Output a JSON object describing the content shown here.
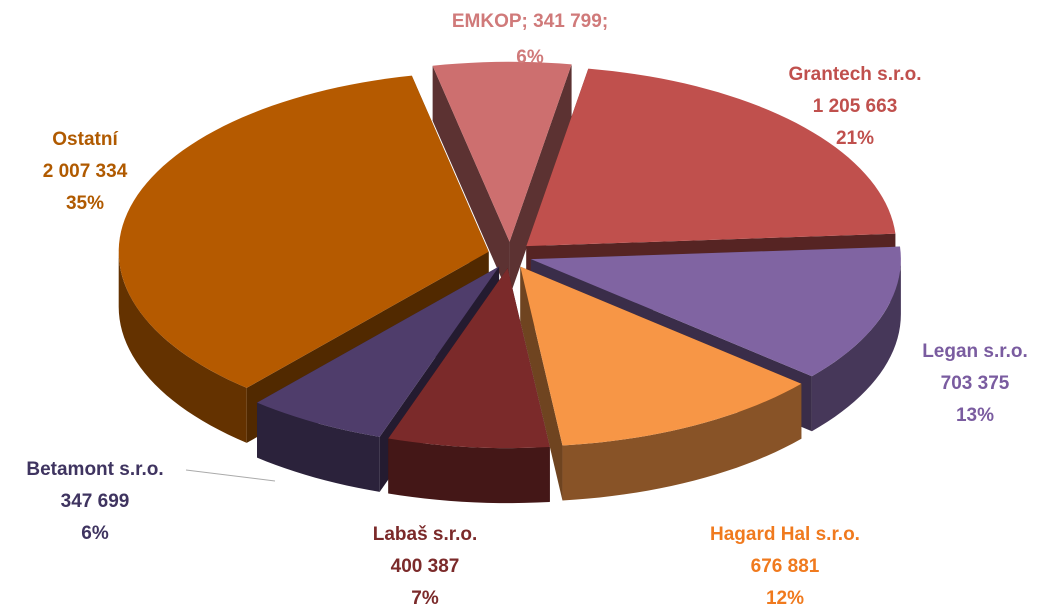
{
  "chart_data": {
    "type": "pie",
    "categories": [
      "EMKOP",
      "Grantech s.r.o.",
      "Legan s.r.o.",
      "Hagard Hal s.r.o.",
      "Labaš s.r.o.",
      "Betamont s.r.o.",
      "Ostatní"
    ],
    "values": [
      341799,
      1205663,
      703375,
      676881,
      400387,
      347699,
      2007334
    ],
    "value_labels": [
      "341 799",
      "1 205 663",
      "703 375",
      "676 881",
      "400 387",
      "347 699",
      "2 007 334"
    ],
    "percent_labels": [
      "6%",
      "21%",
      "13%",
      "12%",
      "7%",
      "6%",
      "35%"
    ],
    "label_separator": ";",
    "colors": [
      "#cd6f6f",
      "#c0504d",
      "#8064a2",
      "#f79646",
      "#7b2a2a",
      "#4f3d6b",
      "#b55a00"
    ],
    "label_colors": [
      "#d07a7a",
      "#c0504d",
      "#7a5ca0",
      "#f07a1e",
      "#7b2a2a",
      "#3f3460",
      "#b05a00"
    ]
  }
}
